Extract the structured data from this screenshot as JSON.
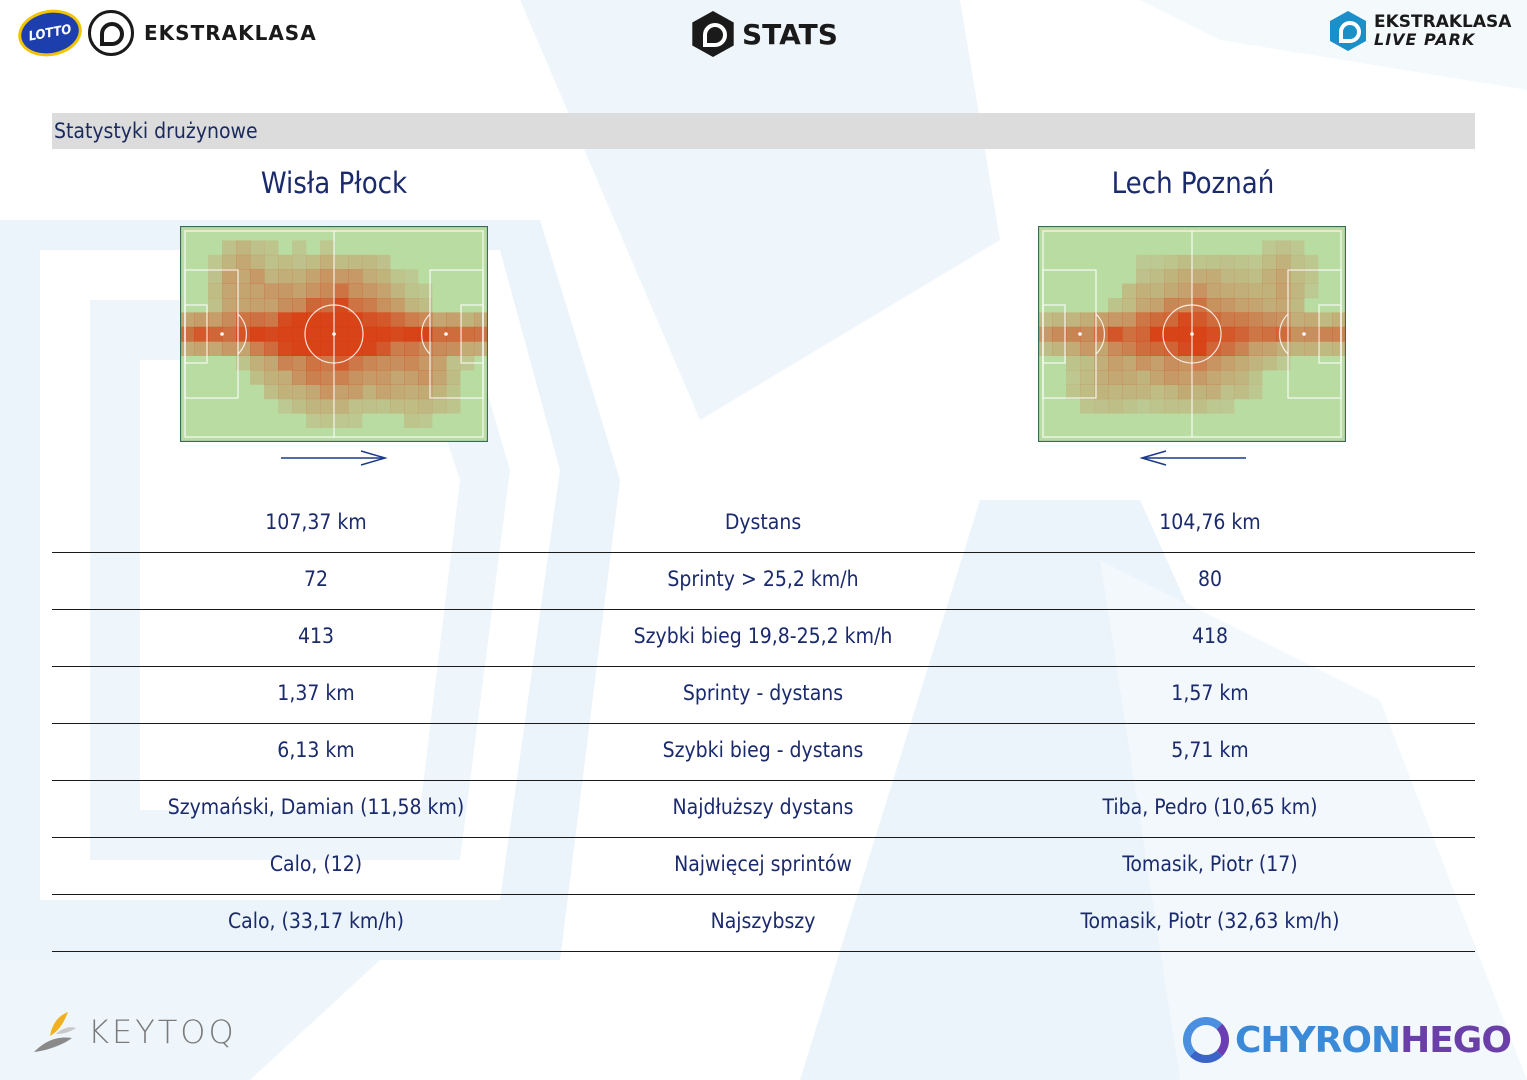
{
  "header": {
    "lotto_label": "LOTTO",
    "left_brand": "EKSTRAKLASA",
    "center_brand": "STATS",
    "right_brand_line1": "EKSTRAKLASA",
    "right_brand_line2": "LIVE PARK"
  },
  "section": {
    "title": "Statystyki drużynowe"
  },
  "teams": {
    "home": "Wisła Płock",
    "away": "Lech Poznań"
  },
  "attack_direction": {
    "home": "right",
    "away": "left"
  },
  "colors": {
    "heat": "#d93a10",
    "pitch": "#b9dca2",
    "text": "#1a2a6c"
  },
  "stats": [
    {
      "home": "107,37 km",
      "label": "Dystans",
      "away": "104,76 km"
    },
    {
      "home": "72",
      "label": "Sprinty > 25,2 km/h",
      "away": "80"
    },
    {
      "home": "413",
      "label": "Szybki bieg 19,8-25,2 km/h",
      "away": "418"
    },
    {
      "home": "1,37 km",
      "label": "Sprinty - dystans",
      "away": "1,57 km"
    },
    {
      "home": "6,13 km",
      "label": "Szybki bieg - dystans",
      "away": "5,71 km"
    },
    {
      "home": "Szymański, Damian (11,58 km)",
      "label": "Najdłuższy dystans",
      "away": "Tiba, Pedro (10,65 km)"
    },
    {
      "home": "Calo,  (12)",
      "label": "Najwięcej sprintów",
      "away": "Tomasik, Piotr (17)"
    },
    {
      "home": "Calo,  (33,17 km/h)",
      "label": "Najszybszy",
      "away": "Tomasik, Piotr (32,63 km/h)"
    }
  ],
  "footer": {
    "left_brand": "KEYTOQ",
    "right_brand_a": "CHYRON",
    "right_brand_b": "HEGO"
  }
}
